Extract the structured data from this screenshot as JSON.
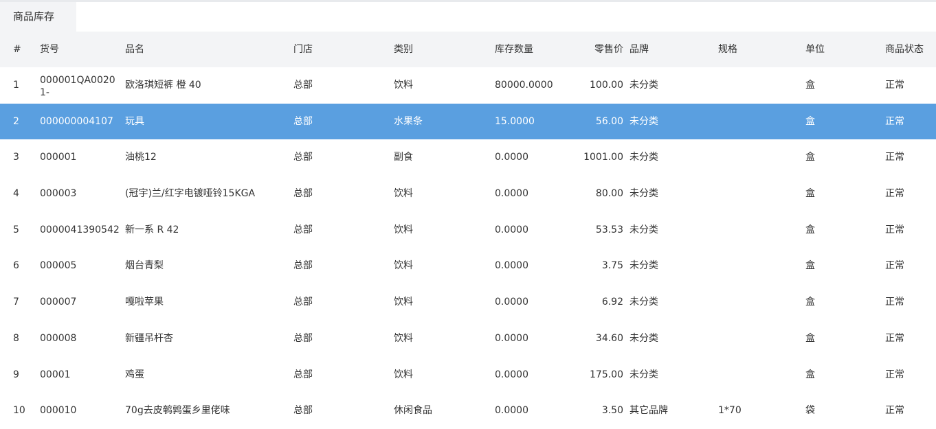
{
  "tab": {
    "label": "商品库存"
  },
  "columns": [
    "#",
    "货号",
    "品名",
    "门店",
    "类别",
    "库存数量",
    "零售价",
    "品牌",
    "规格",
    "单位",
    "商品状态"
  ],
  "rows": [
    [
      "1",
      "000001QA00201-",
      "欧洛琪短裤 橙 40",
      "总部",
      "饮料",
      "80000.0000",
      "100.00",
      "未分类",
      "",
      "盒",
      "正常"
    ],
    [
      "2",
      "000000004107",
      "玩具",
      "总部",
      "水果条",
      "15.0000",
      "56.00",
      "未分类",
      "",
      "盒",
      "正常"
    ],
    [
      "3",
      "000001",
      "油桃12",
      "总部",
      "副食",
      "0.0000",
      "1001.00",
      "未分类",
      "",
      "盒",
      "正常"
    ],
    [
      "4",
      "000003",
      "(冠宇)兰/红字电镀哑铃15KGA",
      "总部",
      "饮料",
      "0.0000",
      "80.00",
      "未分类",
      "",
      "盒",
      "正常"
    ],
    [
      "5",
      "0000041390542",
      "新一系 R 42",
      "总部",
      "饮料",
      "0.0000",
      "53.53",
      "未分类",
      "",
      "盒",
      "正常"
    ],
    [
      "6",
      "000005",
      "烟台青梨",
      "总部",
      "饮料",
      "0.0000",
      "3.75",
      "未分类",
      "",
      "盒",
      "正常"
    ],
    [
      "7",
      "000007",
      "嘎啦苹果",
      "总部",
      "饮料",
      "0.0000",
      "6.92",
      "未分类",
      "",
      "盒",
      "正常"
    ],
    [
      "8",
      "000008",
      "新疆吊杆杏",
      "总部",
      "饮料",
      "0.0000",
      "34.60",
      "未分类",
      "",
      "盒",
      "正常"
    ],
    [
      "9",
      "00001",
      "鸡蛋",
      "总部",
      "饮料",
      "0.0000",
      "175.00",
      "未分类",
      "",
      "盒",
      "正常"
    ],
    [
      "10",
      "000010",
      "70g去皮鹌鹑蛋乡里佬味",
      "总部",
      "休闲食品",
      "0.0000",
      "3.50",
      "其它品牌",
      "1*70",
      "袋",
      "正常"
    ]
  ],
  "selected_row": 1,
  "colors": {
    "selected": "#5a9fe0",
    "header": "#f3f4f6"
  }
}
